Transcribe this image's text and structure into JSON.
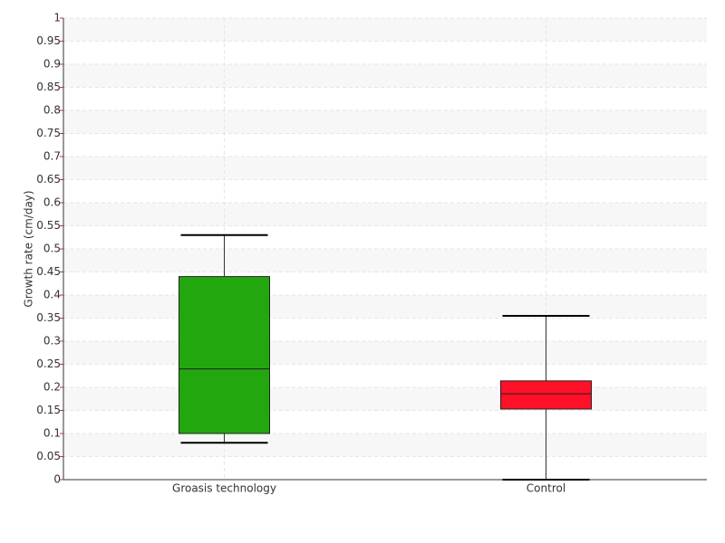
{
  "chart_data": {
    "type": "box",
    "y_label": "Growth rate (cm/day)",
    "boxes": [
      {
        "category": "Groasis technology",
        "color": "#22a80e",
        "min": 0.08,
        "q1": 0.1,
        "median": 0.24,
        "q3": 0.44,
        "max": 0.53
      },
      {
        "category": "Control",
        "color": "#ff1026",
        "min": 0.0,
        "q1": 0.153,
        "median": 0.186,
        "q3": 0.214,
        "max": 0.355
      }
    ],
    "ylim": [
      0,
      1
    ],
    "yticks": [
      0,
      0.05,
      0.1,
      0.15,
      0.2,
      0.25,
      0.3,
      0.35,
      0.4,
      0.45,
      0.5,
      0.55,
      0.6,
      0.65,
      0.7,
      0.75,
      0.8,
      0.85,
      0.9,
      0.95,
      1
    ],
    "grid": true
  }
}
